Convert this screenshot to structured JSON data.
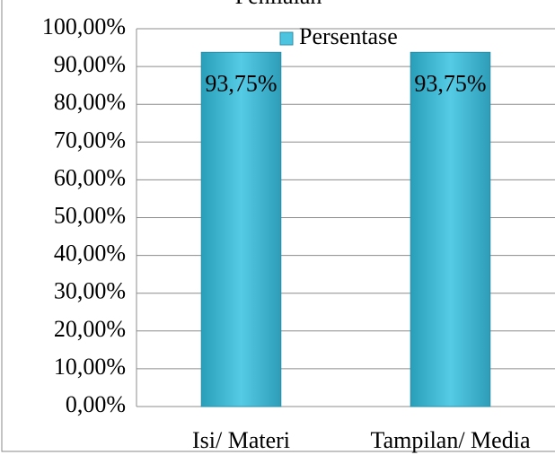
{
  "chart_data": {
    "type": "bar",
    "title": "Penilaian",
    "categories": [
      "Isi/ Materi",
      "Tampilan/ Media"
    ],
    "series": [
      {
        "name": "Persentase",
        "color": "#4cc4df",
        "values": [
          93.75,
          93.75
        ],
        "value_labels": [
          "93,75%",
          "93,75%"
        ]
      }
    ],
    "ylim": [
      0,
      100
    ],
    "yticks": [
      {
        "value": 0,
        "label": "0,00%"
      },
      {
        "value": 10,
        "label": "10,00%"
      },
      {
        "value": 20,
        "label": "20,00%"
      },
      {
        "value": 30,
        "label": "30,00%"
      },
      {
        "value": 40,
        "label": "40,00%"
      },
      {
        "value": 50,
        "label": "50,00%"
      },
      {
        "value": 60,
        "label": "60,00%"
      },
      {
        "value": 70,
        "label": "70,00%"
      },
      {
        "value": 80,
        "label": "80,00%"
      },
      {
        "value": 90,
        "label": "90,00%"
      },
      {
        "value": 100,
        "label": "100,00%"
      }
    ],
    "grid": true,
    "legend": "top"
  }
}
